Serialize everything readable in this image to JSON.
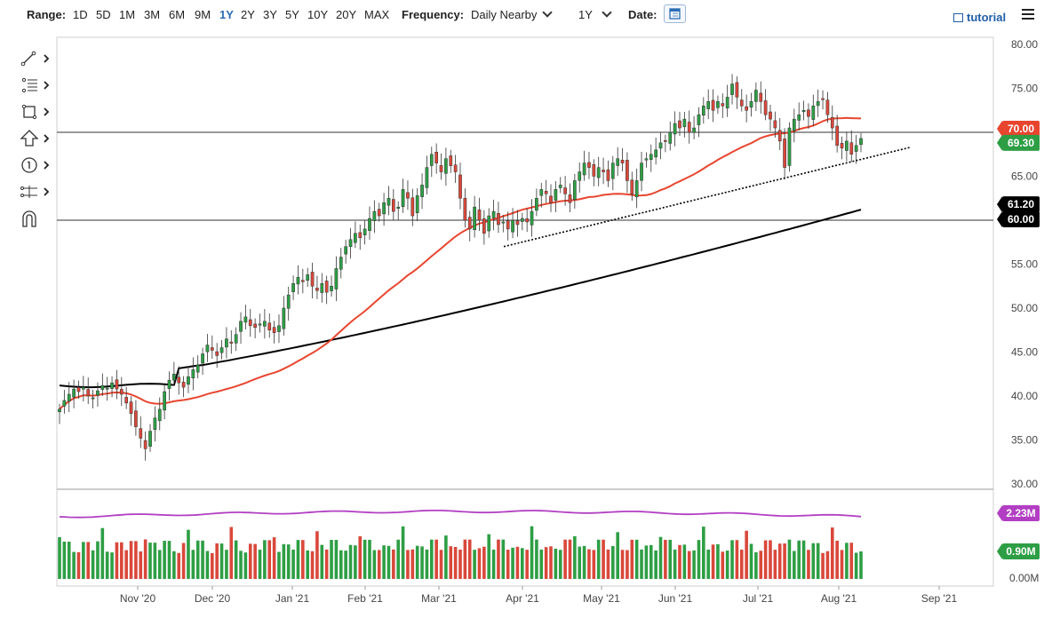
{
  "toolbar": {
    "range_label": "Range:",
    "ranges": [
      "1D",
      "5D",
      "1M",
      "3M",
      "6M",
      "9M",
      "1Y",
      "2Y",
      "3Y",
      "5Y",
      "10Y",
      "20Y",
      "MAX"
    ],
    "active_range": "1Y",
    "frequency_label": "Frequency:",
    "frequency_value": "Daily Nearby",
    "period_value": "1Y",
    "date_label": "Date:",
    "tutorial_label": "tutorial"
  },
  "tools": [
    "line-tool-icon",
    "fib-tool-icon",
    "rectangle-tool-icon",
    "arrow-tool-icon",
    "number-tool-icon",
    "measure-tool-icon",
    "magnet-icon"
  ],
  "chart_data": {
    "type": "candlestick",
    "price_axis": {
      "min": 30,
      "max": 80,
      "ticks": [
        "80.00",
        "75.00",
        "70.00",
        "65.00",
        "60.00",
        "55.00",
        "50.00",
        "45.00",
        "40.00",
        "35.00",
        "30.00"
      ]
    },
    "x_labels": [
      "Nov '20",
      "Dec '20",
      "Jan '21",
      "Feb '21",
      "Mar '21",
      "Apr '21",
      "May '21",
      "Jun '21",
      "Jul '21",
      "Aug '21",
      "Sep '21"
    ],
    "horizontal_lines": [
      70.0,
      60.0
    ],
    "badges": {
      "last_price": "69.30",
      "ma_value": "70.00",
      "long_ma_value": "61.20",
      "line_label": "60.00"
    },
    "closes": [
      38.5,
      39.5,
      40.2,
      40.8,
      40.5,
      41.0,
      40.0,
      39.8,
      40.6,
      41.2,
      40.9,
      41.5,
      40.8,
      40.2,
      39.2,
      38.0,
      36.5,
      35.2,
      34.0,
      36.0,
      37.5,
      38.5,
      40.5,
      41.8,
      42.5,
      41.5,
      41.0,
      42.2,
      43.0,
      43.5,
      44.8,
      45.8,
      45.2,
      44.6,
      45.5,
      46.5,
      46.0,
      47.0,
      48.5,
      49.0,
      48.0,
      47.8,
      48.2,
      48.5,
      47.5,
      47.2,
      48.0,
      50.0,
      51.5,
      52.8,
      53.5,
      53.0,
      53.8,
      52.5,
      52.0,
      52.8,
      51.8,
      52.5,
      54.5,
      55.8,
      57.0,
      57.8,
      58.5,
      58.0,
      59.0,
      60.2,
      61.0,
      60.5,
      62.0,
      62.5,
      61.0,
      61.5,
      63.5,
      62.5,
      60.5,
      62.8,
      64.0,
      66.0,
      67.5,
      66.5,
      65.5,
      67.0,
      66.2,
      65.5,
      62.5,
      60.0,
      59.0,
      61.5,
      60.0,
      58.5,
      60.5,
      61.0,
      59.5,
      59.8,
      59.0,
      60.0,
      59.5,
      60.2,
      59.8,
      61.0,
      62.5,
      63.5,
      63.0,
      62.0,
      63.5,
      64.0,
      63.0,
      62.0,
      64.5,
      65.5,
      66.5,
      66.0,
      65.0,
      66.0,
      65.5,
      64.5,
      66.5,
      67.0,
      66.5,
      64.5,
      63.0,
      64.5,
      66.5,
      67.0,
      67.5,
      68.0,
      68.8,
      69.0,
      70.0,
      71.0,
      70.5,
      71.5,
      70.0,
      70.5,
      72.0,
      73.0,
      73.5,
      72.5,
      73.5,
      73.0,
      74.0,
      75.5,
      74.0,
      73.0,
      72.5,
      73.5,
      74.8,
      73.5,
      72.0,
      71.5,
      70.5,
      69.0,
      66.0,
      70.5,
      71.5,
      72.0,
      72.5,
      71.8,
      73.0,
      73.5,
      73.8,
      72.0,
      70.5,
      68.5,
      68.2,
      69.0,
      67.5,
      68.5,
      69.3
    ],
    "volume_axis": {
      "ticks": [
        "0.00M"
      ]
    },
    "volume_badges": {
      "avg": "2.23M",
      "last": "0.90M"
    }
  },
  "colors": {
    "up": "#2e9e45",
    "down": "#d9483b",
    "ma50": "#e8452f",
    "ma200": "#000000",
    "vol_avg": "#b23fc3",
    "trend": "#000000"
  }
}
